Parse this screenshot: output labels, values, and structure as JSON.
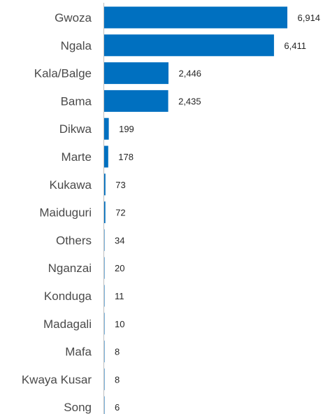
{
  "chart_data": {
    "type": "bar",
    "orientation": "horizontal",
    "title": "",
    "xlabel": "",
    "ylabel": "",
    "categories": [
      "Gwoza",
      "Ngala",
      "Kala/Balge",
      "Bama",
      "Dikwa",
      "Marte",
      "Kukawa",
      "Maiduguri",
      "Others",
      "Nganzai",
      "Konduga",
      "Madagali",
      "Mafa",
      "Kwaya Kusar",
      "Song"
    ],
    "values": [
      6914,
      6411,
      2446,
      2435,
      199,
      178,
      73,
      72,
      34,
      20,
      11,
      10,
      8,
      8,
      6
    ],
    "value_labels": [
      "6,914",
      "6,411",
      "2,446",
      "2,435",
      "199",
      "178",
      "73",
      "72",
      "34",
      "20",
      "11",
      "10",
      "8",
      "8",
      "6"
    ],
    "xlim": [
      0,
      6914
    ],
    "grid": false,
    "legend": "none",
    "colors": {
      "bar": "#0070c0",
      "axis": "#bfbfbf"
    }
  }
}
